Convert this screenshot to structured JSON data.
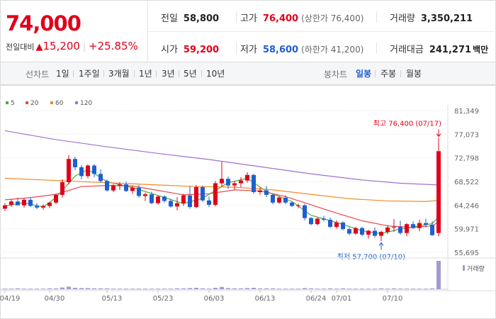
{
  "summary": {
    "current_price": "74,000",
    "change_label": "전일대비",
    "change_symbol": "▲",
    "change_amount": "15,200",
    "change_pct": "+25.85%",
    "prev_close_label": "전일",
    "prev_close": "58,800",
    "high_label": "고가",
    "high": "76,400",
    "high_limit": "(상한가 76,400)",
    "volume_label": "거래량",
    "volume": "3,350,211",
    "open_label": "시가",
    "open": "59,200",
    "low_label": "저가",
    "low": "58,600",
    "low_limit": "(하한가 41,200)",
    "amount_label": "거래대금",
    "amount": "241,271",
    "amount_unit": "백만"
  },
  "tabs": {
    "line_title": "선차트",
    "line": [
      "1일",
      "1주일",
      "3개월",
      "1년",
      "3년",
      "5년",
      "10년"
    ],
    "candle_title": "봉차트",
    "candle": [
      "일봉",
      "주봉",
      "월봉"
    ],
    "active_candle": "일봉"
  },
  "colors": {
    "up": "#e1001b",
    "down": "#1f5fd1",
    "ma5": "#4caf3a",
    "ma20": "#e64a4a",
    "ma60": "#f08a24",
    "ma120": "#a070d0"
  },
  "chart_data": {
    "type": "candlestick",
    "legend": [
      {
        "name": "5",
        "color": "#4caf3a"
      },
      {
        "name": "20",
        "color": "#e64a4a"
      },
      {
        "name": "60",
        "color": "#f08a24"
      },
      {
        "name": "120",
        "color": "#a070d0"
      }
    ],
    "y_ticks": [
      "81,349",
      "77,073",
      "72,798",
      "68,522",
      "64,246",
      "59,971",
      "55,695"
    ],
    "ylim": [
      55695,
      81349
    ],
    "x_ticks": [
      {
        "index": 0,
        "label": "04/19"
      },
      {
        "index": 7,
        "label": "04/30"
      },
      {
        "index": 16,
        "label": "05/13"
      },
      {
        "index": 24,
        "label": "05/23"
      },
      {
        "index": 32,
        "label": "06/03"
      },
      {
        "index": 40,
        "label": "06/13"
      },
      {
        "index": 48,
        "label": "06/24"
      },
      {
        "index": 52,
        "label": "07/01"
      },
      {
        "index": 60,
        "label": "07/10"
      }
    ],
    "high_annotation": {
      "label": "최고",
      "value": "76,400",
      "date": "(07/17)"
    },
    "low_annotation": {
      "label": "최저",
      "value": "57,700",
      "date": "(07/10)"
    },
    "volume_label": "거래량",
    "ohlc": [
      [
        63600,
        64600,
        63200,
        64200
      ],
      [
        64300,
        65300,
        63900,
        64900
      ],
      [
        64900,
        65600,
        64300,
        64200
      ],
      [
        64200,
        65500,
        63800,
        65200
      ],
      [
        65200,
        65600,
        63900,
        64100
      ],
      [
        64100,
        64600,
        63500,
        63800
      ],
      [
        63800,
        64400,
        63400,
        64100
      ],
      [
        64100,
        64800,
        63700,
        64700
      ],
      [
        64700,
        66300,
        64400,
        66100
      ],
      [
        66100,
        68900,
        65600,
        68400
      ],
      [
        68400,
        73300,
        68000,
        72600
      ],
      [
        72600,
        73000,
        70600,
        71100
      ],
      [
        71100,
        71500,
        68900,
        69500
      ],
      [
        69500,
        71600,
        69100,
        71400
      ],
      [
        71400,
        71700,
        69300,
        69900
      ],
      [
        69900,
        70700,
        68300,
        68600
      ],
      [
        68600,
        68900,
        66700,
        66900
      ],
      [
        66900,
        68100,
        66600,
        67800
      ],
      [
        67800,
        68400,
        67000,
        68000
      ],
      [
        68000,
        68500,
        66600,
        66800
      ],
      [
        66800,
        67800,
        66300,
        67400
      ],
      [
        67400,
        67900,
        65600,
        65900
      ],
      [
        65900,
        66500,
        65000,
        66200
      ],
      [
        66200,
        66700,
        64400,
        64600
      ],
      [
        64600,
        66000,
        64300,
        65800
      ],
      [
        65800,
        66000,
        64700,
        65000
      ],
      [
        65000,
        65400,
        63800,
        64000
      ],
      [
        64000,
        65700,
        63300,
        64600
      ],
      [
        64600,
        66300,
        64100,
        66000
      ],
      [
        66000,
        67700,
        63600,
        63900
      ],
      [
        63900,
        67900,
        63700,
        67500
      ],
      [
        67500,
        67800,
        64800,
        65100
      ],
      [
        65100,
        65800,
        63900,
        64300
      ],
      [
        64300,
        68600,
        64000,
        68200
      ],
      [
        68200,
        72100,
        67600,
        69000
      ],
      [
        69000,
        69400,
        67200,
        67800
      ],
      [
        67800,
        68600,
        67000,
        68200
      ],
      [
        68200,
        69300,
        67500,
        68700
      ],
      [
        68700,
        70200,
        68300,
        69700
      ],
      [
        69700,
        69900,
        66300,
        66600
      ],
      [
        66600,
        67400,
        66100,
        66900
      ],
      [
        66900,
        67700,
        65700,
        66100
      ],
      [
        66100,
        66400,
        64400,
        64700
      ],
      [
        64700,
        65900,
        64500,
        65600
      ],
      [
        65600,
        66000,
        64400,
        64700
      ],
      [
        64700,
        64900,
        63900,
        64100
      ],
      [
        64100,
        64500,
        63700,
        64200
      ],
      [
        64200,
        64500,
        61500,
        61900
      ],
      [
        61900,
        62100,
        60600,
        60800
      ],
      [
        60800,
        62000,
        60600,
        61800
      ],
      [
        61800,
        62300,
        61300,
        61600
      ],
      [
        61600,
        62000,
        60100,
        60300
      ],
      [
        60300,
        61500,
        60000,
        61100
      ],
      [
        61100,
        61300,
        59700,
        59900
      ],
      [
        59900,
        60200,
        58800,
        59100
      ],
      [
        59100,
        60300,
        58900,
        60100
      ],
      [
        60100,
        60300,
        58600,
        58900
      ],
      [
        58900,
        59800,
        58200,
        59600
      ],
      [
        59600,
        60200,
        58400,
        58700
      ],
      [
        58700,
        59600,
        57700,
        59400
      ],
      [
        59400,
        60600,
        59000,
        60200
      ],
      [
        60200,
        61700,
        59400,
        60300
      ],
      [
        60300,
        61400,
        58900,
        59200
      ],
      [
        59200,
        61000,
        58600,
        60800
      ],
      [
        60800,
        61300,
        59900,
        60100
      ],
      [
        60100,
        61600,
        59500,
        61000
      ],
      [
        61000,
        61800,
        60200,
        60700
      ],
      [
        60700,
        61300,
        58700,
        58800
      ],
      [
        59200,
        76400,
        58600,
        74000
      ]
    ],
    "ma": {
      "5": {
        "start": 0,
        "points": [
          [
            0,
            64100
          ],
          [
            3,
            64700
          ],
          [
            6,
            63900
          ],
          [
            8,
            65600
          ],
          [
            11,
            69500
          ],
          [
            13,
            70700
          ],
          [
            16,
            68500
          ],
          [
            20,
            67400
          ],
          [
            24,
            66000
          ],
          [
            28,
            64500
          ],
          [
            31,
            65500
          ],
          [
            35,
            68300
          ],
          [
            38,
            69100
          ],
          [
            41,
            66700
          ],
          [
            45,
            64900
          ],
          [
            48,
            62400
          ],
          [
            52,
            61100
          ],
          [
            56,
            59600
          ],
          [
            59,
            59100
          ],
          [
            62,
            59900
          ],
          [
            65,
            60500
          ],
          [
            67,
            60900
          ],
          [
            68,
            62100
          ]
        ]
      },
      "20": {
        "start": 0,
        "points": [
          [
            0,
            65200
          ],
          [
            4,
            65600
          ],
          [
            8,
            66200
          ],
          [
            12,
            67600
          ],
          [
            16,
            67800
          ],
          [
            20,
            67700
          ],
          [
            24,
            66900
          ],
          [
            28,
            66100
          ],
          [
            32,
            66300
          ],
          [
            36,
            67000
          ],
          [
            40,
            66800
          ],
          [
            44,
            65800
          ],
          [
            48,
            64300
          ],
          [
            52,
            62800
          ],
          [
            56,
            61400
          ],
          [
            60,
            60500
          ],
          [
            64,
            60200
          ],
          [
            67,
            60500
          ],
          [
            68,
            61200
          ]
        ]
      },
      "60": {
        "start": 0,
        "points": [
          [
            0,
            69100
          ],
          [
            6,
            68800
          ],
          [
            12,
            68500
          ],
          [
            18,
            68200
          ],
          [
            24,
            67900
          ],
          [
            30,
            67600
          ],
          [
            36,
            67500
          ],
          [
            42,
            67000
          ],
          [
            48,
            66200
          ],
          [
            54,
            65400
          ],
          [
            60,
            65000
          ],
          [
            66,
            64900
          ],
          [
            68,
            65100
          ]
        ]
      },
      "120": {
        "start": 0,
        "points": [
          [
            0,
            77700
          ],
          [
            8,
            76100
          ],
          [
            16,
            74800
          ],
          [
            24,
            73600
          ],
          [
            32,
            72500
          ],
          [
            40,
            71200
          ],
          [
            48,
            69900
          ],
          [
            56,
            68800
          ],
          [
            62,
            68200
          ],
          [
            68,
            67900
          ]
        ]
      }
    },
    "volume": [
      2,
      2,
      3,
      2,
      2,
      2,
      2,
      3,
      3,
      6,
      9,
      5,
      4,
      4,
      3,
      3,
      3,
      2,
      2,
      2,
      2,
      2,
      2,
      2,
      2,
      2,
      2,
      3,
      3,
      4,
      5,
      3,
      2,
      5,
      8,
      4,
      3,
      3,
      4,
      5,
      3,
      3,
      3,
      2,
      2,
      2,
      2,
      4,
      3,
      2,
      2,
      3,
      2,
      3,
      2,
      2,
      2,
      2,
      2,
      3,
      2,
      3,
      2,
      2,
      2,
      2,
      2,
      3,
      100
    ]
  }
}
